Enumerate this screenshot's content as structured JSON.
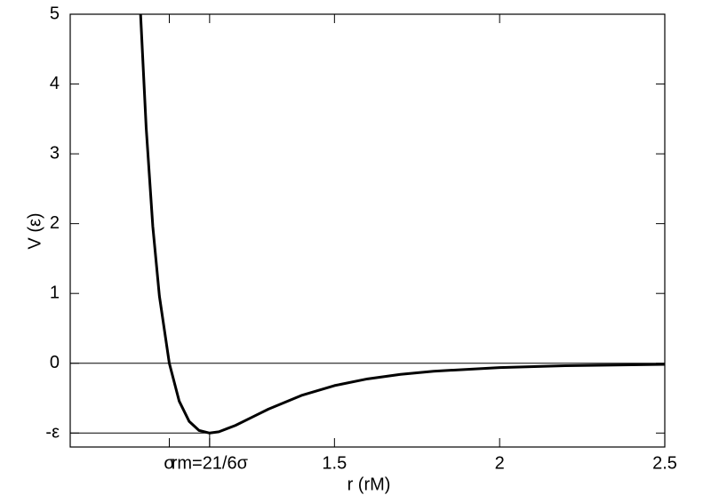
{
  "chart_data": {
    "type": "line",
    "xlabel": "r (rM)",
    "ylabel": "V (ε)",
    "x": [
      0.913,
      0.93,
      0.95,
      0.97,
      1.0,
      1.03,
      1.06,
      1.09,
      1.122,
      1.15,
      1.2,
      1.25,
      1.3,
      1.4,
      1.5,
      1.6,
      1.7,
      1.8,
      2.0,
      2.2,
      2.5
    ],
    "series": [
      {
        "name": "V",
        "color": "#000000",
        "values": [
          5,
          3.373,
          1.961,
          0.963,
          0,
          -0.544,
          -0.832,
          -0.963,
          -1,
          -0.982,
          -0.891,
          -0.774,
          -0.657,
          -0.461,
          -0.32,
          -0.224,
          -0.159,
          -0.114,
          -0.0615,
          -0.035,
          -0.0163
        ]
      }
    ],
    "xlim": [
      0.7,
      2.5
    ],
    "xticks": [
      {
        "value": 1,
        "label": "σ"
      },
      {
        "value": 1.122,
        "label": "rm=21/6σ"
      },
      1.5,
      2,
      2.5
    ],
    "ylim": [
      -1.2,
      5
    ],
    "yticks": [
      {
        "value": -1,
        "label": "-ε"
      },
      0,
      1,
      2,
      3,
      4,
      5
    ],
    "grid": false
  }
}
